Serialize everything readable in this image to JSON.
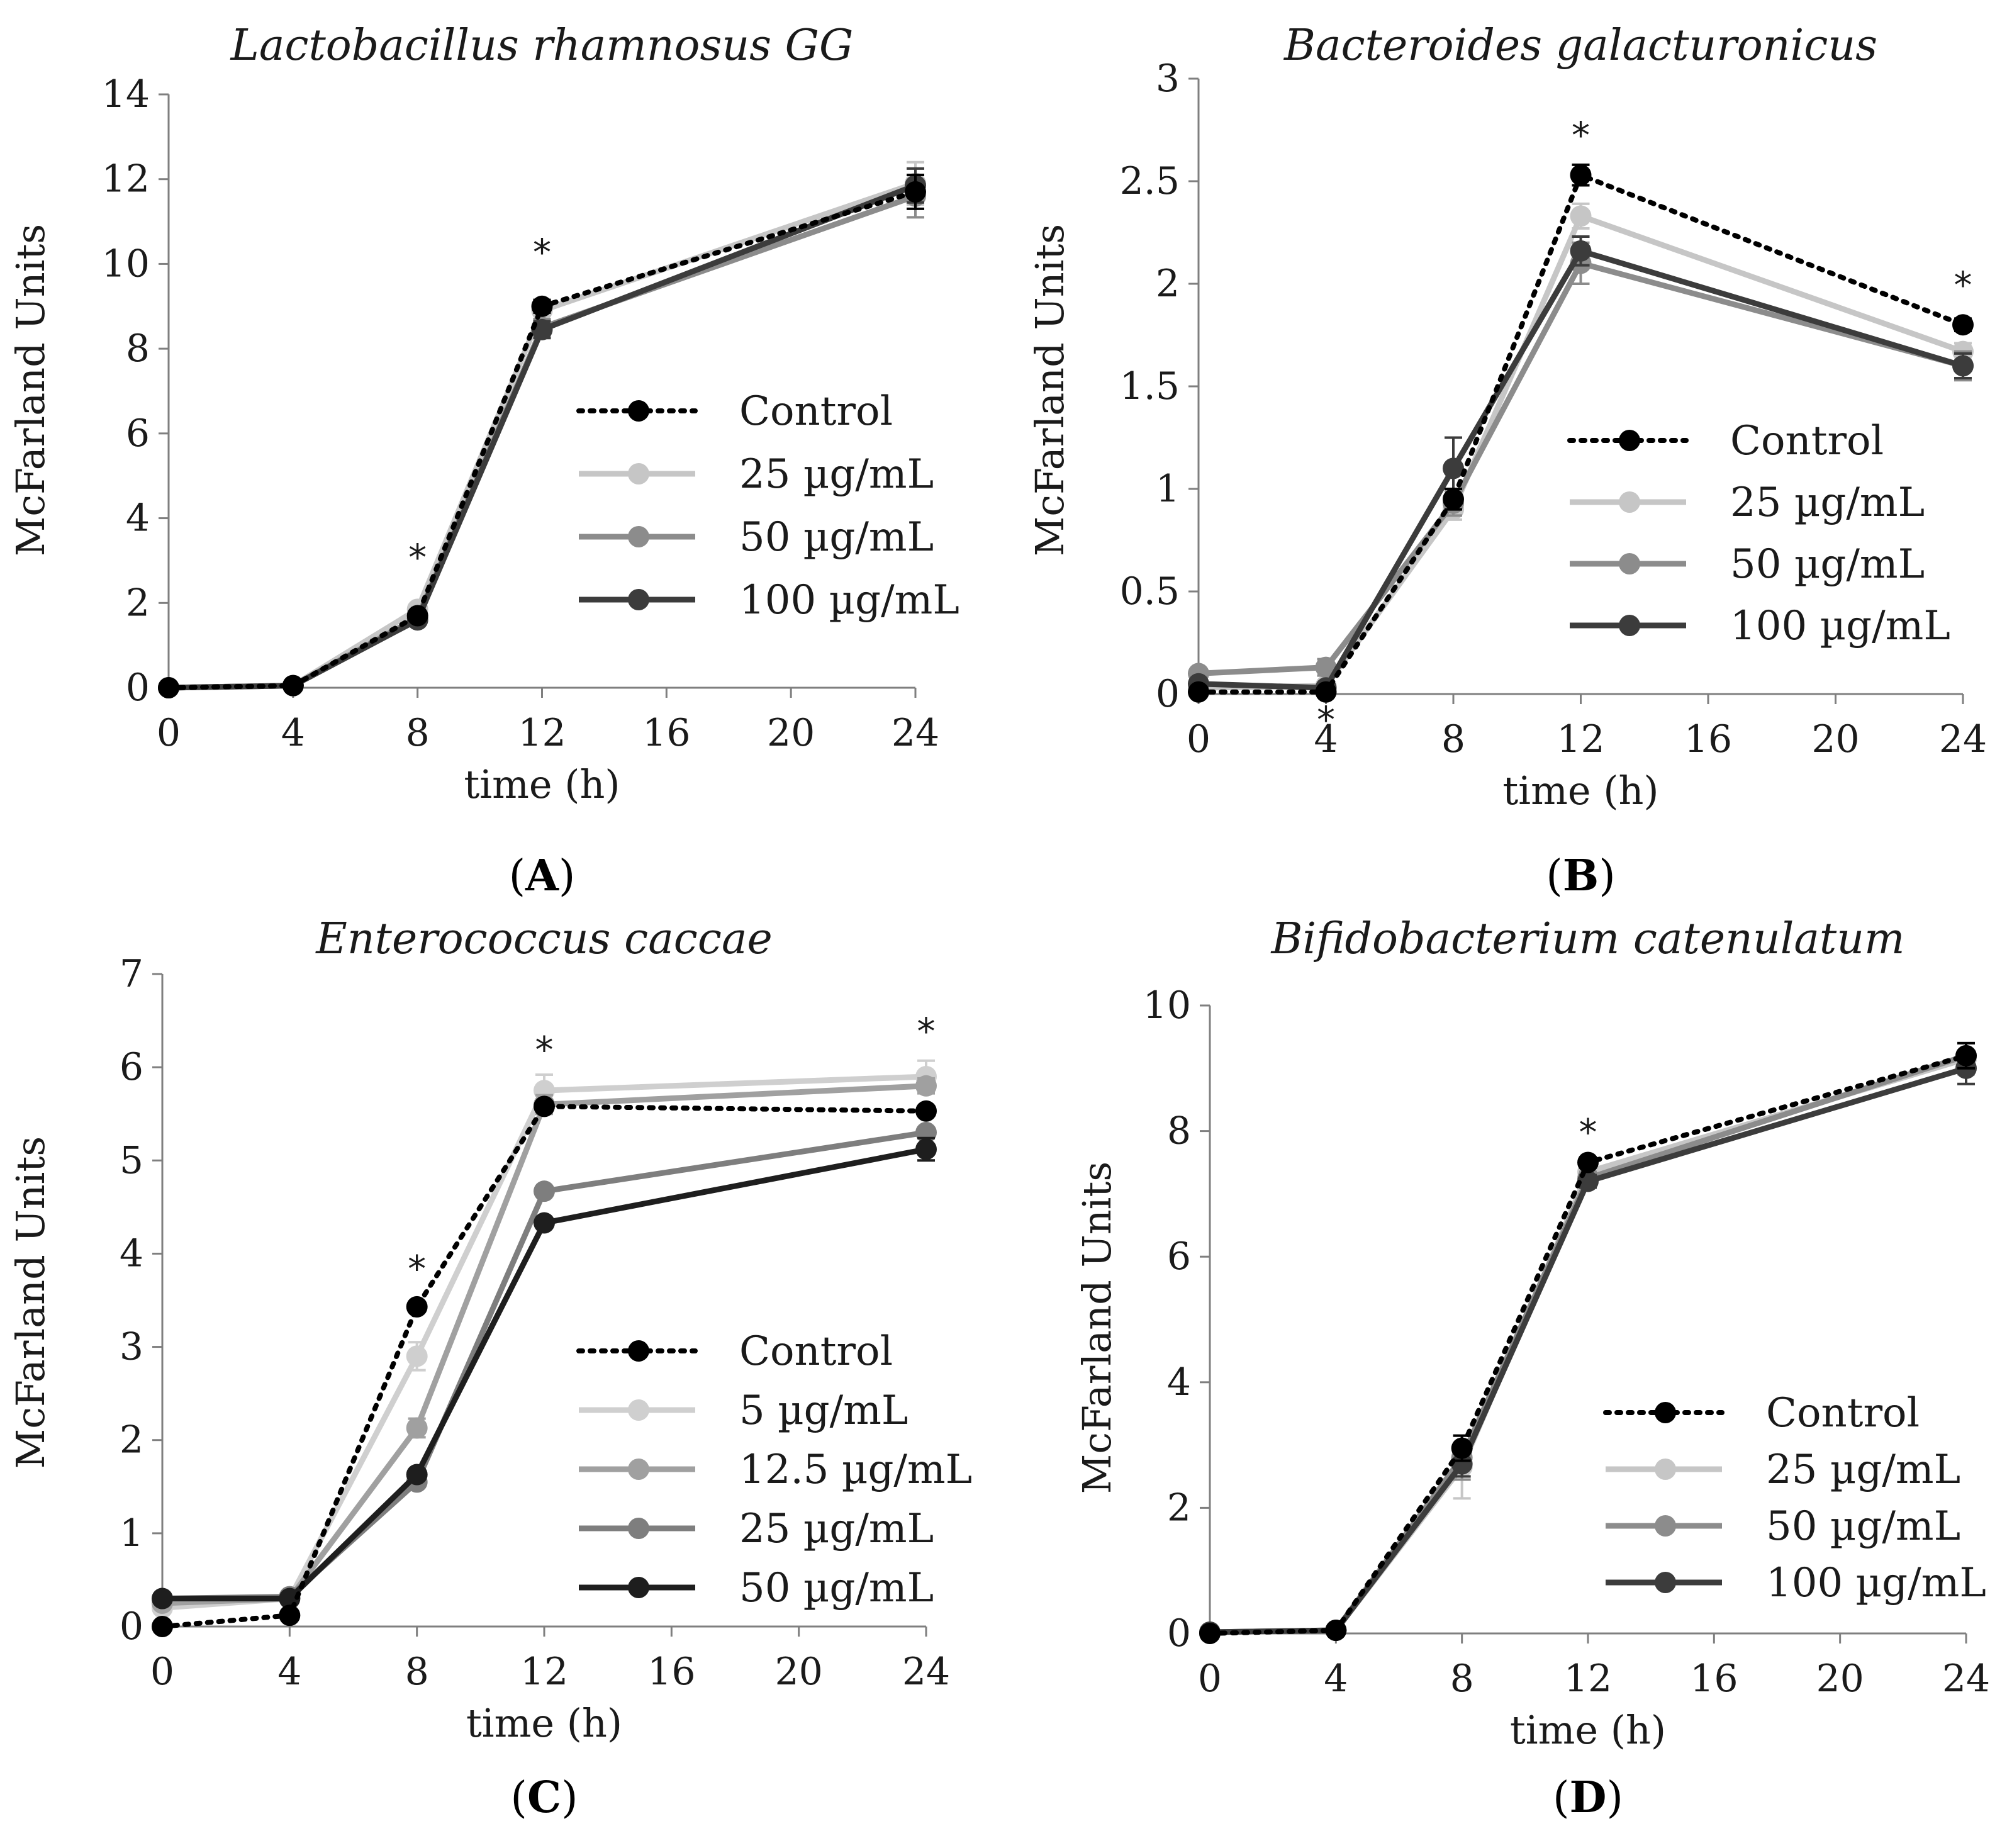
{
  "chart_data": [
    {
      "id": "A",
      "panel_label": "A",
      "type": "line",
      "title": "Lactobacillus rhamnosus GG",
      "xlabel": "time (h)",
      "ylabel": "McFarland Units",
      "xlim": [
        0,
        24
      ],
      "ylim": [
        0,
        14
      ],
      "xticks": [
        0,
        4,
        8,
        12,
        16,
        20,
        24
      ],
      "yticks": [
        0,
        2,
        4,
        6,
        8,
        10,
        12,
        14
      ],
      "x": [
        0,
        4,
        8,
        12,
        24
      ],
      "series": [
        {
          "name": "Control",
          "style": "dotted",
          "color": "#000000",
          "values": [
            0,
            0.05,
            1.7,
            9.0,
            11.7
          ],
          "errors": [
            0,
            0,
            0.1,
            0.15,
            0.4
          ]
        },
        {
          "name": "25 µg/mL",
          "style": "solid",
          "color": "#c6c6c6",
          "values": [
            0,
            0.05,
            1.85,
            8.9,
            11.9
          ],
          "errors": [
            0,
            0,
            0.1,
            0.2,
            0.5
          ]
        },
        {
          "name": "50 µg/mL",
          "style": "solid",
          "color": "#8c8c8c",
          "values": [
            0,
            0.05,
            1.65,
            8.5,
            11.6
          ],
          "errors": [
            0,
            0,
            0.1,
            0.2,
            0.5
          ]
        },
        {
          "name": "100 µg/mL",
          "style": "solid",
          "color": "#3c3c3c",
          "values": [
            0,
            0.05,
            1.6,
            8.45,
            11.85
          ],
          "errors": [
            0,
            0,
            0.1,
            0.2,
            0.4
          ]
        }
      ],
      "annotations": [
        {
          "text": "*",
          "x": 8,
          "y": 3.1
        },
        {
          "text": "*",
          "x": 12,
          "y": 10.3
        }
      ]
    },
    {
      "id": "B",
      "panel_label": "B",
      "type": "line",
      "title": "Bacteroides galacturonicus",
      "xlabel": "time (h)",
      "ylabel": "McFarland Units",
      "xlim": [
        0,
        24
      ],
      "ylim": [
        0,
        3
      ],
      "xticks": [
        0,
        4,
        8,
        12,
        16,
        20,
        24
      ],
      "yticks": [
        0,
        0.5,
        1,
        1.5,
        2,
        2.5,
        3
      ],
      "x": [
        0,
        4,
        8,
        12,
        24
      ],
      "series": [
        {
          "name": "Control",
          "style": "dotted",
          "color": "#000000",
          "values": [
            0.01,
            0.01,
            0.95,
            2.53,
            1.8
          ],
          "errors": [
            0,
            0,
            0.05,
            0.05,
            0.03
          ]
        },
        {
          "name": "25 µg/mL",
          "style": "solid",
          "color": "#c6c6c6",
          "values": [
            0.03,
            0.04,
            0.9,
            2.33,
            1.67
          ],
          "errors": [
            0.02,
            0.02,
            0.05,
            0.06,
            0.04
          ]
        },
        {
          "name": "50 µg/mL",
          "style": "solid",
          "color": "#8c8c8c",
          "values": [
            0.1,
            0.13,
            0.93,
            2.1,
            1.6
          ],
          "errors": [
            0.02,
            0.04,
            0.06,
            0.1,
            0.07
          ]
        },
        {
          "name": "100 µg/mL",
          "style": "solid",
          "color": "#3c3c3c",
          "values": [
            0.05,
            0.03,
            1.1,
            2.16,
            1.6
          ],
          "errors": [
            0.02,
            0.02,
            0.15,
            0.07,
            0.06
          ]
        }
      ],
      "annotations": [
        {
          "text": "*",
          "x": 12,
          "y": 2.73
        },
        {
          "text": "*",
          "x": 24,
          "y": 2.0
        },
        {
          "text": "*",
          "x": 4,
          "y": -0.12
        }
      ]
    },
    {
      "id": "C",
      "panel_label": "C",
      "type": "line",
      "title": "Enterococcus caccae",
      "xlabel": "time (h)",
      "ylabel": "McFarland Units",
      "xlim": [
        0,
        24
      ],
      "ylim": [
        0,
        7
      ],
      "xticks": [
        0,
        4,
        8,
        12,
        16,
        20,
        24
      ],
      "yticks": [
        0,
        1,
        2,
        3,
        4,
        5,
        6,
        7
      ],
      "x": [
        0,
        4,
        8,
        12,
        24
      ],
      "series": [
        {
          "name": "Control",
          "style": "dotted",
          "color": "#000000",
          "values": [
            0,
            0.12,
            3.43,
            5.58,
            5.53
          ],
          "errors": [
            0,
            0,
            0.05,
            0.05,
            0.05
          ]
        },
        {
          "name": "5 µg/mL",
          "style": "solid",
          "color": "#cfcfcf",
          "values": [
            0.2,
            0.3,
            2.9,
            5.75,
            5.9
          ],
          "errors": [
            0.02,
            0.03,
            0.15,
            0.17,
            0.17
          ]
        },
        {
          "name": "12.5 µg/mL",
          "style": "solid",
          "color": "#a0a0a0",
          "values": [
            0.25,
            0.3,
            2.13,
            5.6,
            5.8
          ],
          "errors": [
            0.02,
            0.03,
            0.1,
            0.1,
            0.08
          ]
        },
        {
          "name": "25 µg/mL",
          "style": "solid",
          "color": "#7e7e7e",
          "values": [
            0.3,
            0.32,
            1.55,
            4.67,
            5.3
          ],
          "errors": [
            0.02,
            0.03,
            0.05,
            0.05,
            0.05
          ]
        },
        {
          "name": "50 µg/mL",
          "style": "solid",
          "color": "#1e1e1e",
          "values": [
            0.3,
            0.3,
            1.63,
            4.33,
            5.12
          ],
          "errors": [
            0.02,
            0.03,
            0.05,
            0.05,
            0.12
          ]
        }
      ],
      "annotations": [
        {
          "text": "*",
          "x": 8,
          "y": 3.85
        },
        {
          "text": "*",
          "x": 12,
          "y": 6.2
        },
        {
          "text": "*",
          "x": 24,
          "y": 6.4
        }
      ]
    },
    {
      "id": "D",
      "panel_label": "D",
      "type": "line",
      "title": "Bifidobacterium catenulatum",
      "xlabel": "time (h)",
      "ylabel": "McFarland Units",
      "xlim": [
        0,
        24
      ],
      "ylim": [
        0,
        10
      ],
      "xticks": [
        0,
        4,
        8,
        12,
        16,
        20,
        24
      ],
      "yticks": [
        0,
        2,
        4,
        6,
        8,
        10
      ],
      "x": [
        0,
        4,
        8,
        12,
        24
      ],
      "series": [
        {
          "name": "Control",
          "style": "dotted",
          "color": "#000000",
          "values": [
            0,
            0.05,
            2.95,
            7.5,
            9.2
          ],
          "errors": [
            0,
            0,
            0.2,
            0.08,
            0.2
          ]
        },
        {
          "name": "25 µg/mL",
          "style": "solid",
          "color": "#c6c6c6",
          "values": [
            0.02,
            0.05,
            2.65,
            7.35,
            9.15
          ],
          "errors": [
            0,
            0,
            0.5,
            0.1,
            0.25
          ]
        },
        {
          "name": "50 µg/mL",
          "style": "solid",
          "color": "#8c8c8c",
          "values": [
            0.02,
            0.05,
            2.8,
            7.25,
            9.2
          ],
          "errors": [
            0,
            0,
            0.35,
            0.1,
            0.2
          ]
        },
        {
          "name": "100 µg/mL",
          "style": "solid",
          "color": "#3c3c3c",
          "values": [
            0.02,
            0.05,
            2.7,
            7.2,
            9.0
          ],
          "errors": [
            0,
            0,
            0.2,
            0.1,
            0.25
          ]
        }
      ],
      "annotations": [
        {
          "text": "*",
          "x": 12,
          "y": 8.0
        }
      ]
    }
  ]
}
